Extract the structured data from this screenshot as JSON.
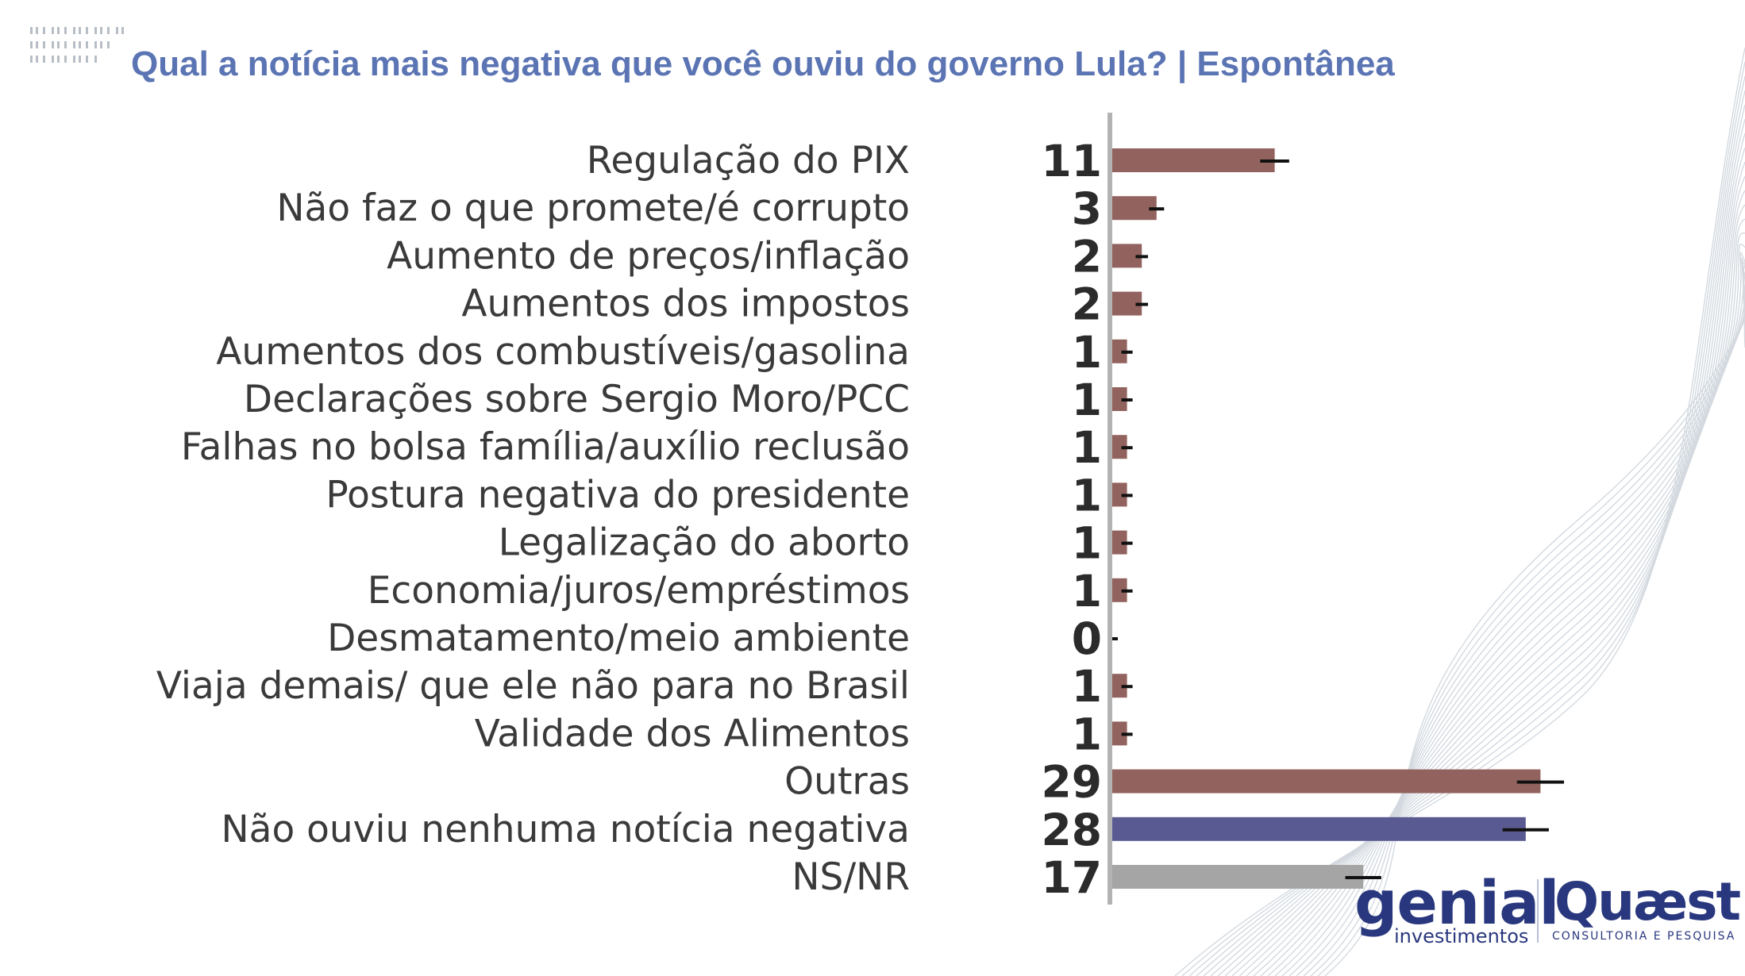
{
  "title": "Qual a notícia mais negativa que você ouviu do governo Lula? | Espontânea",
  "chart_data": {
    "type": "bar",
    "orientation": "horizontal",
    "categories": [
      "Regulação do PIX",
      "Não faz o que promete/é corrupto",
      "Aumento de preços/inflação",
      "Aumentos dos impostos",
      "Aumentos dos combustíveis/gasolina",
      "Declarações sobre Sergio Moro/PCC",
      "Falhas no bolsa família/auxílio reclusão",
      "Postura negativa do presidente",
      "Legalização do aborto",
      "Economia/juros/empréstimos",
      "Desmatamento/meio ambiente",
      "Viaja demais/ que ele não para no Brasil",
      "Validade dos Alimentos",
      "Outras",
      "Não ouviu nenhuma notícia negativa",
      "NS/NR"
    ],
    "values": [
      11,
      3,
      2,
      2,
      1,
      1,
      1,
      1,
      1,
      1,
      0,
      1,
      1,
      29,
      28,
      17
    ],
    "value_labels": [
      "11",
      "3",
      "2",
      "2",
      "1",
      "1",
      "1",
      "1",
      "1",
      "1",
      "0",
      "1",
      "1",
      "29",
      "28",
      "17"
    ],
    "error_bars": true,
    "bar_colors": [
      "#92635e",
      "#92635e",
      "#92635e",
      "#92635e",
      "#92635e",
      "#92635e",
      "#92635e",
      "#92635e",
      "#92635e",
      "#92635e",
      "#92635e",
      "#92635e",
      "#92635e",
      "#92635e",
      "#5a5a92",
      "#a5a5a5"
    ],
    "axis_color": "#b3b3b3"
  },
  "logos": {
    "genial": "genial",
    "genial_sub": "investimentos",
    "quaest": "Quæst",
    "quaest_sub": "CONSULTORIA E PESQUISA"
  }
}
